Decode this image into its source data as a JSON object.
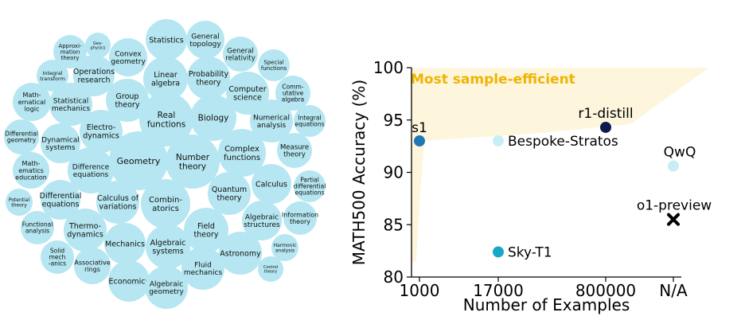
{
  "bubbles": [
    {
      "label": "Statistics"
    },
    {
      "label": "General\ntopology"
    },
    {
      "label": "Approxi-\nmation\ntheory"
    },
    {
      "label": "Geo-\nphysics"
    },
    {
      "label": "Convex\ngeometry"
    },
    {
      "label": "General\nrelativity"
    },
    {
      "label": "Special\nfunctions"
    },
    {
      "label": "Operations\nresearch"
    },
    {
      "label": "Linear\nalgebra"
    },
    {
      "label": "Probability\ntheory"
    },
    {
      "label": "Integral\ntransform"
    },
    {
      "label": "Computer\nscience"
    },
    {
      "label": "Comm-\nutative\nalgebra"
    },
    {
      "label": "Math-\nematical\nlogic"
    },
    {
      "label": "Statistical\nmechanics"
    },
    {
      "label": "Group\ntheory"
    },
    {
      "label": "Real\nfunctions"
    },
    {
      "label": "Biology"
    },
    {
      "label": "Numerical\nanalysis"
    },
    {
      "label": "Integral\nequations"
    },
    {
      "label": "Differential\ngeometry"
    },
    {
      "label": "Dynamical\nsystems"
    },
    {
      "label": "Electro-\ndynamics"
    },
    {
      "label": "Complex\nfunctions"
    },
    {
      "label": "Measure\ntheory"
    },
    {
      "label": "Geometry"
    },
    {
      "label": "Number\ntheory"
    },
    {
      "label": "Math-\nematics\neducation"
    },
    {
      "label": "Difference\nequations"
    },
    {
      "label": "Calculus"
    },
    {
      "label": "Partial\ndifferential\nequations"
    },
    {
      "label": "Differential\nequations"
    },
    {
      "label": "Calculus of\nvariations"
    },
    {
      "label": "Combin-\natorics"
    },
    {
      "label": "Quantum\ntheory"
    },
    {
      "label": "Potential\ntheory"
    },
    {
      "label": "Algebraic\nstructures"
    },
    {
      "label": "Information\ntheory"
    },
    {
      "label": "Functional\nanalysis"
    },
    {
      "label": "Thermo-\ndynamics"
    },
    {
      "label": "Field\ntheory"
    },
    {
      "label": "Mechanics"
    },
    {
      "label": "Algebraic\nsystems"
    },
    {
      "label": "Harmonic\nanalysis"
    },
    {
      "label": "Solid\nmech\n-anics"
    },
    {
      "label": "Associative\nrings"
    },
    {
      "label": "Astronomy"
    },
    {
      "label": "Control\ntheory"
    },
    {
      "label": "Fluid\nmechanics"
    },
    {
      "label": "Economics"
    },
    {
      "label": "Algebraic\ngeometry"
    }
  ],
  "chart_data": {
    "type": "scatter",
    "title": "",
    "xlabel": "Number of Examples",
    "ylabel": "MATH500 Accuracy (%)",
    "x_categories": [
      "1000",
      "17000",
      "800000",
      "N/A"
    ],
    "ylim": [
      80,
      100
    ],
    "yticks": [
      80,
      85,
      90,
      95,
      100
    ],
    "region_label": "Most sample-efficient",
    "points": [
      {
        "name": "s1",
        "x": "1000",
        "y": 93.0,
        "color": "#1f77b4",
        "marker": "circle"
      },
      {
        "name": "Bespoke-Stratos",
        "x": "17000",
        "y": 93.0,
        "color": "#c8eef5",
        "marker": "circle"
      },
      {
        "name": "Sky-T1",
        "x": "17000",
        "y": 82.4,
        "color": "#17a8c9",
        "marker": "circle"
      },
      {
        "name": "r1-distill",
        "x": "800000",
        "y": 94.3,
        "color": "#0d1b4d",
        "marker": "circle"
      },
      {
        "name": "QwQ",
        "x": "N/A",
        "y": 90.6,
        "color": "#c8eef5",
        "marker": "circle"
      },
      {
        "name": "o1-preview",
        "x": "N/A",
        "y": 85.5,
        "color": "#000000",
        "marker": "x"
      }
    ]
  }
}
